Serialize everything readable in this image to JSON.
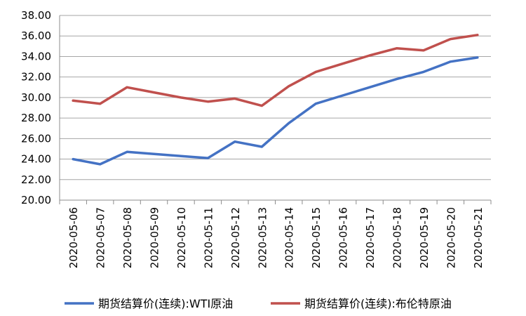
{
  "chart_data": {
    "type": "line",
    "categories": [
      "2020-05-06",
      "2020-05-07",
      "2020-05-08",
      "2020-05-09",
      "2020-05-10",
      "2020-05-11",
      "2020-05-12",
      "2020-05-13",
      "2020-05-14",
      "2020-05-15",
      "2020-05-16",
      "2020-05-17",
      "2020-05-18",
      "2020-05-19",
      "2020-05-20",
      "2020-05-21"
    ],
    "series": [
      {
        "name": "期货结算价(连续):WTI原油",
        "color": "#4472C4",
        "values": [
          24.0,
          23.5,
          24.7,
          24.5,
          24.3,
          24.1,
          25.7,
          25.2,
          27.5,
          29.4,
          30.2,
          31.0,
          31.8,
          32.5,
          33.5,
          33.9
        ]
      },
      {
        "name": "期货结算价(连续):布伦特原油",
        "color": "#C0504D",
        "values": [
          29.7,
          29.4,
          31.0,
          30.5,
          30.0,
          29.6,
          29.9,
          29.2,
          31.1,
          32.5,
          33.3,
          34.1,
          34.8,
          34.6,
          35.7,
          36.1
        ]
      }
    ],
    "yticks": [
      "20.00",
      "22.00",
      "24.00",
      "26.00",
      "28.00",
      "30.00",
      "32.00",
      "34.00",
      "36.00",
      "38.00"
    ],
    "ylim": [
      20,
      38
    ],
    "grid": true,
    "legend_position": "bottom"
  }
}
